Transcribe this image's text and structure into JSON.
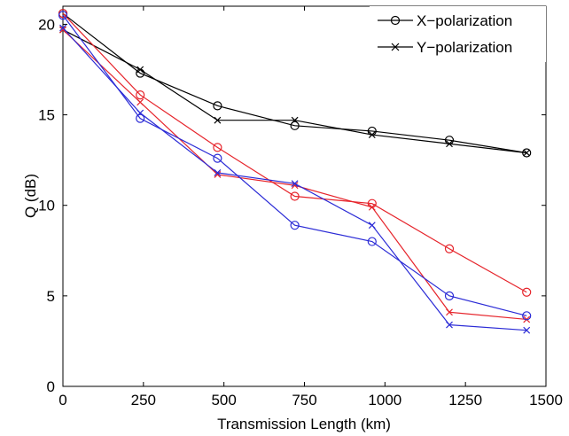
{
  "chart_data": {
    "type": "line",
    "xlabel": "Transmission Length (km)",
    "ylabel": "Q (dB)",
    "xlim": [
      0,
      1500
    ],
    "ylim": [
      0,
      21
    ],
    "xticks": [
      0,
      250,
      500,
      750,
      1000,
      1250,
      1500
    ],
    "yticks": [
      0,
      5,
      10,
      15,
      20
    ],
    "grid": false,
    "legend_position": "top-right",
    "legend": [
      {
        "label": "X−polarization",
        "marker": "circle",
        "color": "#000000"
      },
      {
        "label": "Y−polarization",
        "marker": "x",
        "color": "#000000"
      }
    ],
    "x": [
      0,
      240,
      480,
      720,
      960,
      1200,
      1440
    ],
    "series": [
      {
        "color": "#000000",
        "marker": "circle",
        "values": [
          20.6,
          17.3,
          15.5,
          14.4,
          14.1,
          13.6,
          12.9
        ]
      },
      {
        "color": "#000000",
        "marker": "x",
        "values": [
          19.7,
          17.5,
          14.7,
          14.7,
          13.9,
          13.4,
          12.9
        ]
      },
      {
        "color": "#e6242b",
        "marker": "circle",
        "values": [
          20.6,
          16.1,
          13.2,
          10.5,
          10.1,
          7.6,
          5.2
        ]
      },
      {
        "color": "#e6242b",
        "marker": "x",
        "values": [
          19.7,
          15.7,
          11.7,
          11.1,
          9.9,
          4.1,
          3.7
        ]
      },
      {
        "color": "#2b2bd6",
        "marker": "circle",
        "values": [
          20.5,
          14.8,
          12.6,
          8.9,
          8.0,
          5.0,
          3.9
        ]
      },
      {
        "color": "#2b2bd6",
        "marker": "x",
        "values": [
          19.8,
          15.1,
          11.8,
          11.2,
          8.9,
          3.4,
          3.1
        ]
      }
    ]
  }
}
